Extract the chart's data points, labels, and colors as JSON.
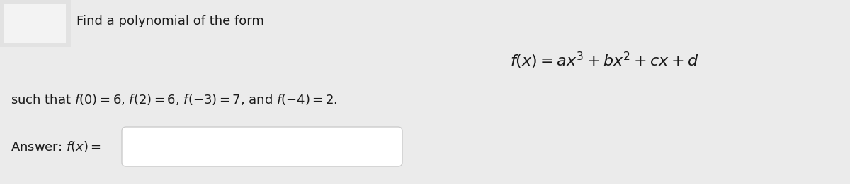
{
  "bg_color": "#ebebeb",
  "header_text": "Find a polynomial of the form",
  "header_fontsize": 13,
  "formula_text": "$f(x) = ax^3 + bx^2 + cx + d$",
  "formula_fontsize": 16,
  "condition_text": "such that $f(0) = 6$, $f(2) = 6$, $f(-3) = 7$, and $f(-4) = 2$.",
  "condition_fontsize": 13,
  "answer_label": "Answer: $f(x) =$",
  "answer_fontsize": 13,
  "input_box_facecolor": "#ffffff",
  "input_box_edgecolor": "#cccccc",
  "text_color": "#1a1a1a"
}
